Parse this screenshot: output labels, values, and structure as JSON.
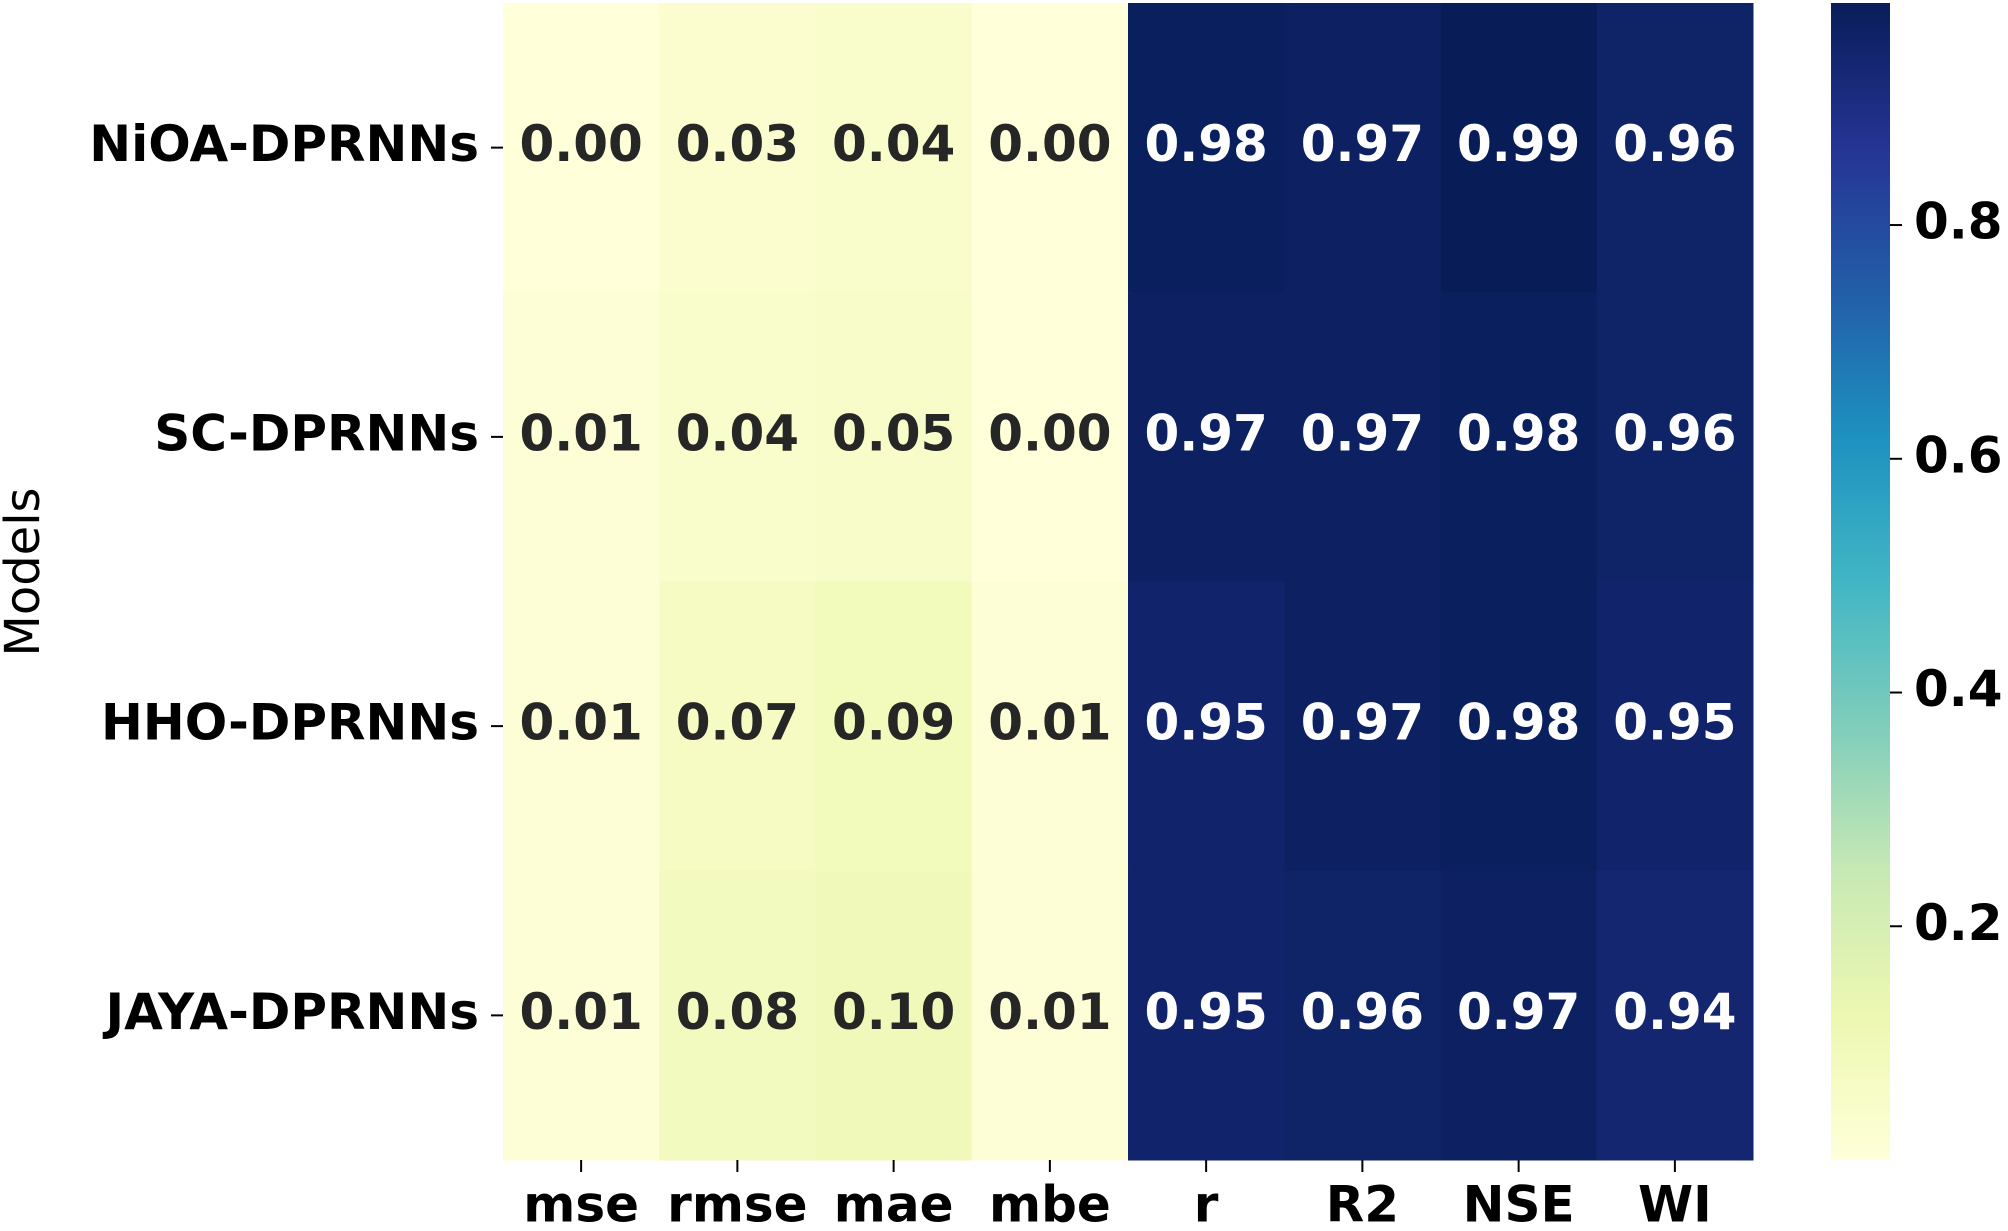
{
  "chart_data": {
    "type": "heatmap",
    "y_label": "Models",
    "rows": [
      "NiOA-DPRNNs",
      "SC-DPRNNs",
      "HHO-DPRNNs",
      "JAYA-DPRNNs"
    ],
    "columns": [
      "mse",
      "rmse",
      "mae",
      "mbe",
      "r",
      "R2",
      "NSE",
      "WI"
    ],
    "values": [
      [
        0.0,
        0.03,
        0.04,
        0.0,
        0.98,
        0.97,
        0.99,
        0.96
      ],
      [
        0.01,
        0.04,
        0.05,
        0.0,
        0.97,
        0.97,
        0.98,
        0.96
      ],
      [
        0.01,
        0.07,
        0.09,
        0.01,
        0.95,
        0.97,
        0.98,
        0.95
      ],
      [
        0.01,
        0.08,
        0.1,
        0.01,
        0.95,
        0.96,
        0.97,
        0.94
      ]
    ],
    "value_labels": [
      [
        "0.00",
        "0.03",
        "0.04",
        "0.00",
        "0.98",
        "0.97",
        "0.99",
        "0.96"
      ],
      [
        "0.01",
        "0.04",
        "0.05",
        "0.00",
        "0.97",
        "0.97",
        "0.98",
        "0.96"
      ],
      [
        "0.01",
        "0.07",
        "0.09",
        "0.01",
        "0.95",
        "0.97",
        "0.98",
        "0.95"
      ],
      [
        "0.01",
        "0.08",
        "0.10",
        "0.01",
        "0.95",
        "0.96",
        "0.97",
        "0.94"
      ]
    ],
    "colormap": "YlGnBu",
    "clim": [
      0,
      0.99
    ],
    "cticks": [
      0.2,
      0.4,
      0.6,
      0.8
    ]
  }
}
